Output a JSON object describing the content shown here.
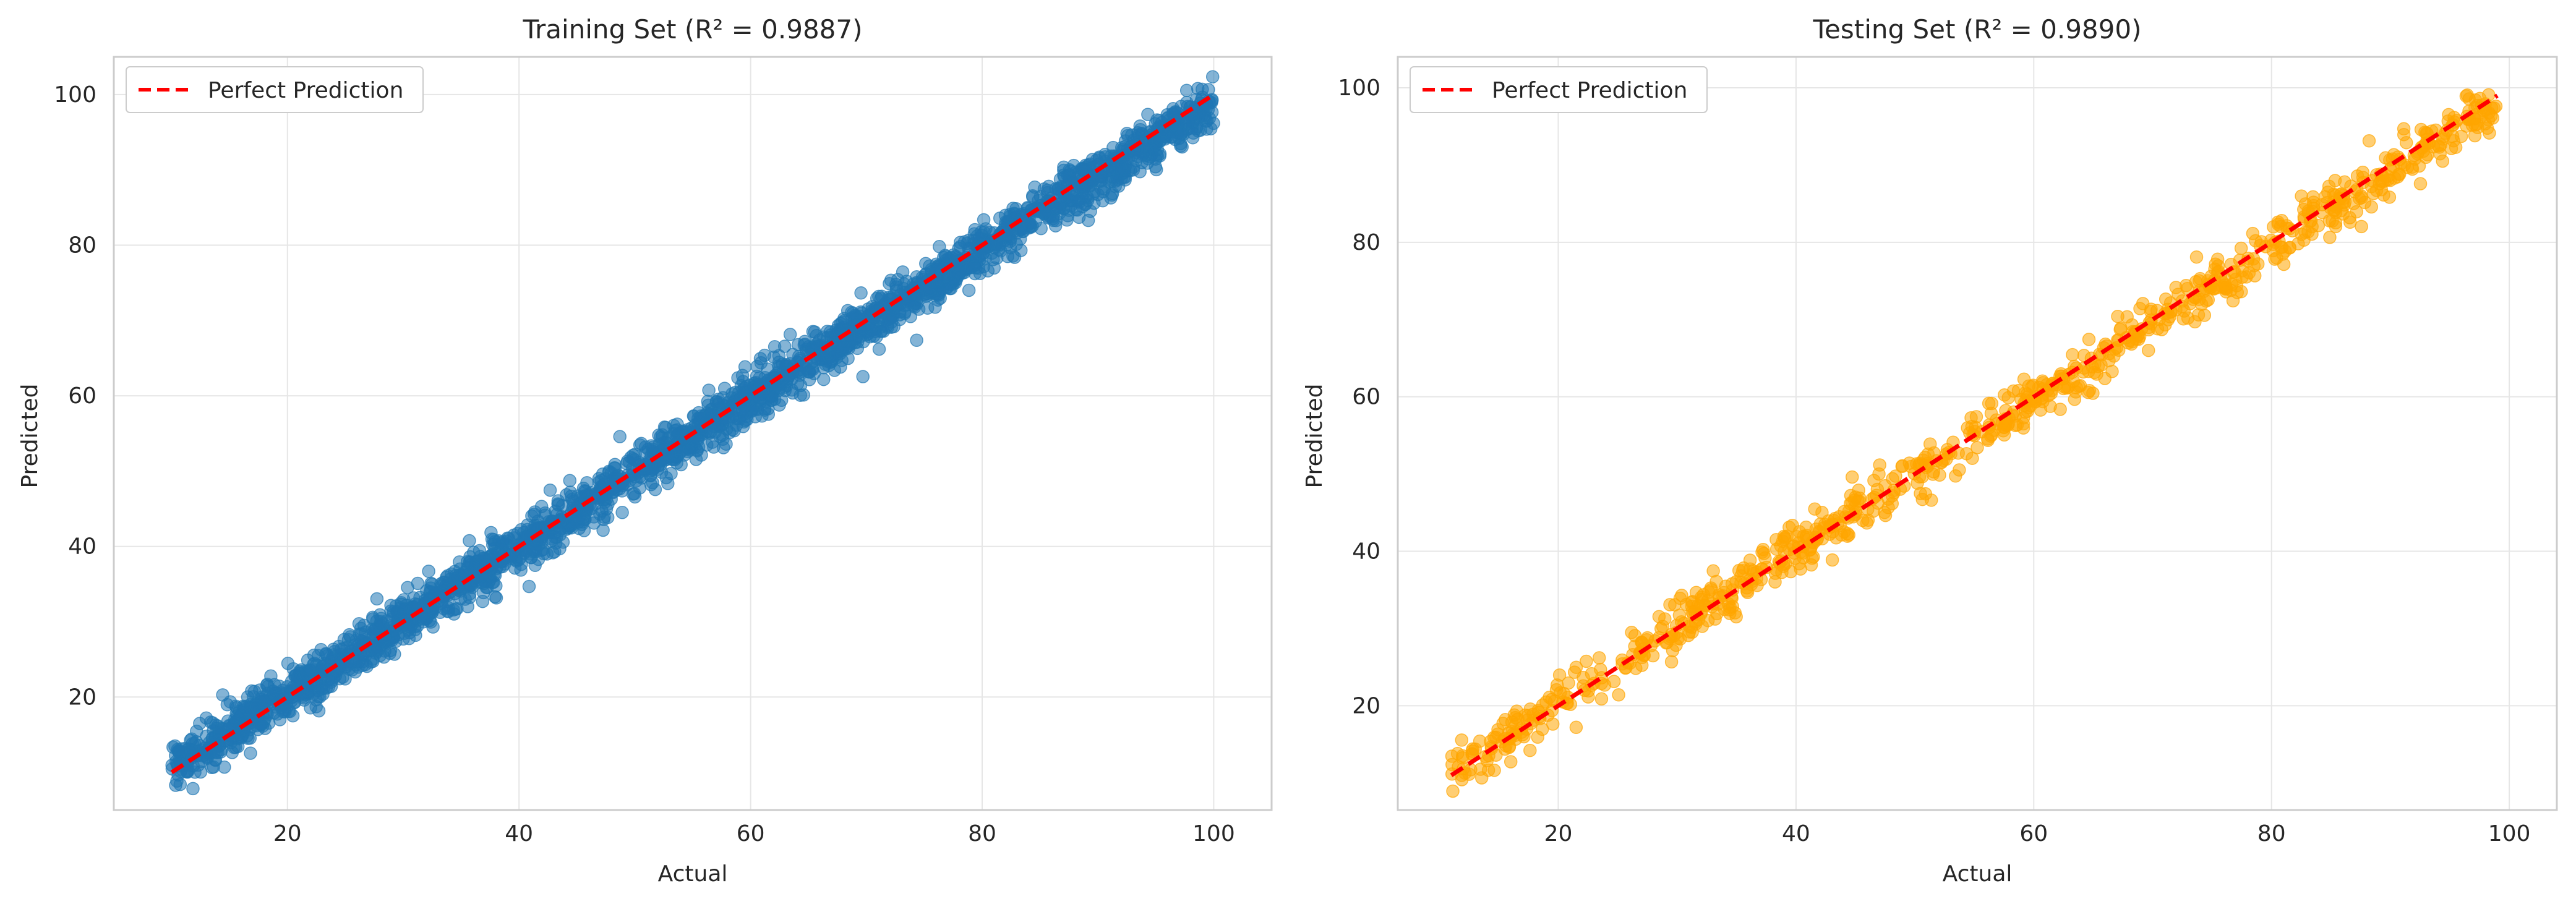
{
  "chart_data": [
    {
      "type": "scatter",
      "title": "Training Set (R² = 0.9887)",
      "xlabel": "Actual",
      "ylabel": "Predicted",
      "xlim": [
        5,
        105
      ],
      "ylim": [
        5,
        105
      ],
      "xticks": [
        20,
        40,
        60,
        80,
        100
      ],
      "yticks": [
        20,
        40,
        60,
        80,
        100
      ],
      "grid": true,
      "legend_position": "top-left",
      "series": [
        {
          "kind": "scatter",
          "color": "#1f77b4",
          "alpha": 0.55,
          "x_range": [
            10,
            100
          ],
          "slope": 0.985,
          "intercept": 0.6,
          "noise_sd": 1.6,
          "count": 2600
        },
        {
          "kind": "line",
          "name": "Perfect Prediction",
          "color": "#ff0000",
          "dash": "dashed",
          "x": [
            10,
            100
          ],
          "y": [
            10,
            100
          ]
        }
      ]
    },
    {
      "type": "scatter",
      "title": "Testing Set (R² = 0.9890)",
      "xlabel": "Actual",
      "ylabel": "Predicted",
      "xlim": [
        6.5,
        104
      ],
      "ylim": [
        6.5,
        104
      ],
      "xticks": [
        20,
        40,
        60,
        80,
        100
      ],
      "yticks": [
        20,
        40,
        60,
        80,
        100
      ],
      "grid": true,
      "legend_position": "top-left",
      "series": [
        {
          "kind": "scatter",
          "color": "#ffa500",
          "alpha": 0.55,
          "x_range": [
            11,
            99
          ],
          "slope": 0.985,
          "intercept": 0.6,
          "noise_sd": 1.6,
          "count": 900
        },
        {
          "kind": "line",
          "name": "Perfect Prediction",
          "color": "#ff0000",
          "dash": "dashed",
          "x": [
            11,
            99
          ],
          "y": [
            11,
            99
          ]
        }
      ]
    }
  ]
}
